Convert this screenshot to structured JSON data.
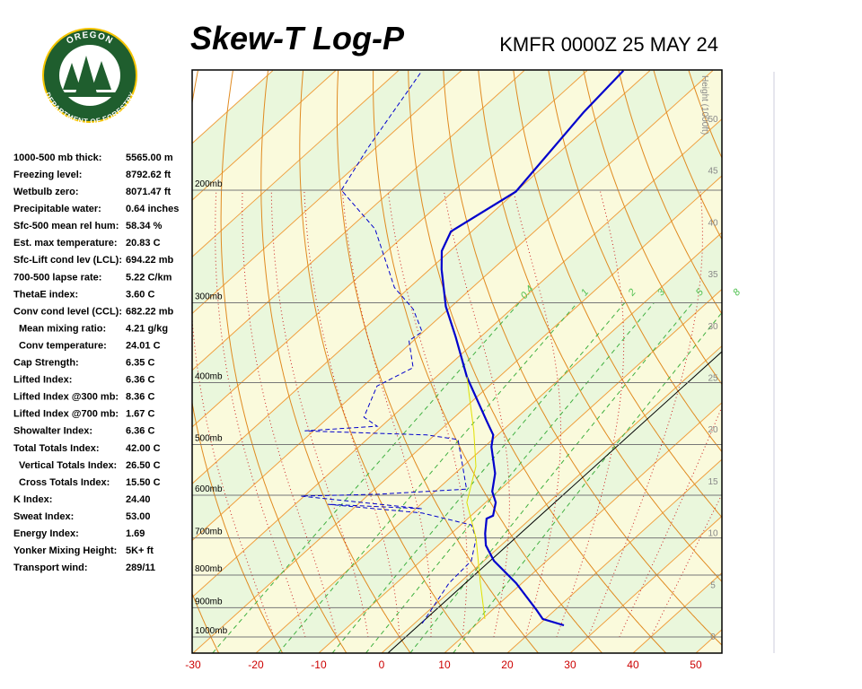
{
  "logo": {
    "top": "OREGON",
    "bottom": "DEPARTMENT OF FORESTRY"
  },
  "indices": [
    [
      "1000-500 mb thick:",
      "5565.00 m"
    ],
    [
      "Freezing level:",
      "8792.62 ft"
    ],
    [
      "Wetbulb zero:",
      "8071.47 ft"
    ],
    [
      "Precipitable water:",
      "0.64 inches"
    ],
    [
      "Sfc-500 mean rel hum:",
      "58.34 %"
    ],
    [
      "Est. max temperature:",
      "20.83 C"
    ],
    [
      "Sfc-Lift cond lev (LCL):",
      "694.22 mb"
    ],
    [
      "700-500 lapse rate:",
      "5.22 C/km"
    ],
    [
      "ThetaE index:",
      "3.60 C"
    ],
    [
      "Conv cond level (CCL):",
      "682.22 mb"
    ],
    [
      "Mean mixing ratio:",
      "4.21 g/kg"
    ],
    [
      "Conv temperature:",
      "24.01 C"
    ],
    [
      "Cap Strength:",
      "6.35 C"
    ],
    [
      "Lifted Index:",
      "6.36 C"
    ],
    [
      "Lifted Index @300 mb:",
      "8.36 C"
    ],
    [
      "Lifted Index @700 mb:",
      "1.67 C"
    ],
    [
      "Showalter Index:",
      "6.36 C"
    ],
    [
      "Total Totals Index:",
      "42.00 C"
    ],
    [
      "Vertical Totals Index:",
      "26.50 C"
    ],
    [
      "Cross Totals Index:",
      "15.50 C"
    ],
    [
      "K Index:",
      "24.40"
    ],
    [
      "Sweat Index:",
      "53.00"
    ],
    [
      "Energy Index:",
      "1.69"
    ],
    [
      "Yonker Mixing Height:",
      "5K+ ft"
    ],
    [
      "Transport wind:",
      "289/11"
    ]
  ],
  "chart_data": {
    "type": "skew-t",
    "title": "Skew-T Log-P",
    "subtitle": "KMFR 0000Z 25 MAY 24",
    "xlim": [
      -30.1,
      54.1
    ],
    "xticks": [
      -30,
      -20,
      -10,
      0,
      10,
      20,
      30,
      40,
      50
    ],
    "ylim": [
      1060,
      130
    ],
    "log_y": true,
    "yticks": [
      {
        "value": 1000,
        "label": "1000mb"
      },
      {
        "value": 900,
        "label": "900mb"
      },
      {
        "value": 800,
        "label": "800mb"
      },
      {
        "value": 700,
        "label": "700mb"
      },
      {
        "value": 600,
        "label": "600mb"
      },
      {
        "value": 500,
        "label": "500mb"
      },
      {
        "value": 400,
        "label": "400mb"
      },
      {
        "value": 300,
        "label": "300mb"
      },
      {
        "value": 200,
        "label": "200mb"
      }
    ],
    "height_label": "Height (1000ft)",
    "height_ticks": [
      0,
      5,
      10,
      15,
      20,
      25,
      30,
      35,
      40,
      45,
      50
    ],
    "mixing_ratio_labels": [
      0.4,
      1,
      2,
      3,
      5,
      8
    ],
    "series": [
      {
        "color": "#0000cc",
        "pressure": [
          959,
          937,
          908,
          824,
          760,
          719,
          689,
          653,
          646,
          616,
          592,
          555,
          504,
          483,
          460,
          392,
          339,
          304,
          266,
          249,
          232,
          201,
          151,
          130
        ],
        "values": [
          24.1,
          19.6,
          17.1,
          9.1,
          1.6,
          -2.4,
          -4.6,
          -7.0,
          -6.5,
          -8.4,
          -10.9,
          -13.6,
          -18.9,
          -20.7,
          -24.1,
          -35.1,
          -44.0,
          -50.9,
          -58.1,
          -61.3,
          -63.3,
          -60.0,
          -63.2,
          -64.2
        ]
      },
      {
        "color": "#0000cc",
        "pressure": [
          952,
          824,
          760,
          701,
          668,
          640,
          620,
          630,
          602,
          598,
          587,
          541,
          491,
          483,
          476,
          468,
          453,
          405,
          379,
          344,
          333,
          307,
          284,
          230,
          200,
          172,
          131
        ],
        "values": [
          1.2,
          -1.6,
          -2.0,
          -5.2,
          -8.3,
          -18.2,
          -34.8,
          -19.0,
          -40.5,
          -28.5,
          -15.4,
          -20.0,
          -25.5,
          -31.3,
          -51.4,
          -40.7,
          -44.4,
          -47.8,
          -45.3,
          -50.7,
          -50.2,
          -55.6,
          -62.4,
          -75.8,
          -88.0,
          -91.2,
          -96.1
        ]
      },
      {
        "color": "#e0e000",
        "pressure": [
          937,
          824,
          701,
          616,
          541,
          476,
          392
        ],
        "values": [
          10.4,
          3.4,
          -5.2,
          -13.0,
          -17.9,
          -24.5,
          -35.1
        ]
      }
    ]
  }
}
